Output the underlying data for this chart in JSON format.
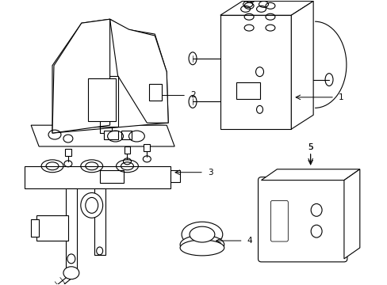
{
  "background_color": "#ffffff",
  "line_color": "#000000",
  "line_width": 0.8,
  "fig_width": 4.89,
  "fig_height": 3.6,
  "dpi": 100
}
